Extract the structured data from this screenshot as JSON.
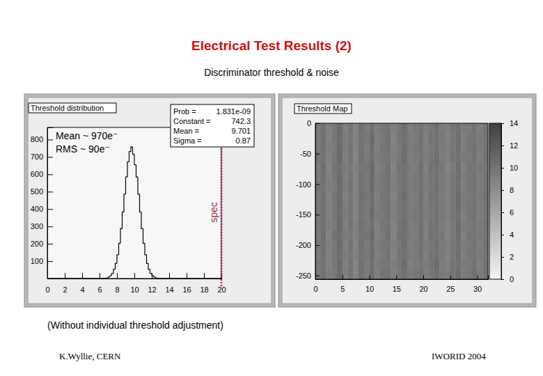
{
  "slide": {
    "title": "Electrical Test Results (2)",
    "subtitle": "Discriminator threshold & noise",
    "note": "(Without individual threshold adjustment)",
    "footer_left": "K.Wyllie, CERN",
    "footer_right": "IWORID 2004"
  },
  "chart_data": [
    {
      "type": "histogram",
      "title": "Threshold distribution",
      "annotations": [
        "Mean ~ 970e⁻",
        "RMS ~ 90e⁻"
      ],
      "stats": [
        {
          "label": "Prob =",
          "value": "1.831e-09"
        },
        {
          "label": "Constant =",
          "value": "742.3"
        },
        {
          "label": "Mean =",
          "value": "9.701"
        },
        {
          "label": "Sigma =",
          "value": "0.87"
        }
      ],
      "spec": {
        "label": "spec",
        "value": 20
      },
      "color": "#000000",
      "bins": [
        0,
        0.2,
        0.4,
        0.6,
        0.8,
        1,
        1.2,
        1.4,
        1.6,
        1.8,
        2,
        2.2,
        2.4,
        2.6,
        2.8,
        3,
        3.2,
        3.4,
        3.6,
        3.8,
        4,
        4.2,
        4.4,
        4.6,
        4.8,
        5,
        5.2,
        5.4,
        5.6,
        5.8,
        6,
        6.2,
        6.4,
        6.6,
        6.8,
        7,
        7.2,
        7.4,
        7.6,
        7.8,
        8,
        8.2,
        8.4,
        8.6,
        8.8,
        9,
        9.2,
        9.4,
        9.6,
        9.8,
        10,
        10.2,
        10.4,
        10.6,
        10.8,
        11,
        11.2,
        11.4,
        11.6,
        11.8,
        12,
        12.2,
        12.4,
        12.6,
        12.8,
        13,
        13.2,
        13.4,
        13.6,
        13.8,
        14,
        14.2,
        14.4,
        14.6,
        14.8,
        15,
        15.2,
        15.4,
        15.6,
        15.8,
        16,
        16.2,
        16.4,
        16.6,
        16.8,
        17,
        17.2,
        17.4,
        17.6,
        17.8,
        18,
        18.2,
        18.4,
        18.6,
        18.8,
        19,
        19.2,
        19.4,
        19.6,
        19.8,
        20
      ],
      "values": [
        0,
        0,
        0,
        0,
        0,
        0,
        0,
        0,
        0,
        0,
        0,
        0,
        0,
        0,
        0,
        0,
        0,
        0,
        0,
        0,
        0,
        0,
        0,
        0,
        0,
        0,
        0,
        0,
        0,
        0,
        0,
        0,
        1,
        2,
        4,
        9,
        17,
        30,
        53,
        87,
        137,
        203,
        287,
        383,
        486,
        585,
        672,
        731,
        758,
        716,
        655,
        585,
        486,
        383,
        287,
        203,
        137,
        87,
        53,
        30,
        17,
        9,
        4,
        2,
        1,
        0,
        0,
        0,
        0,
        0,
        0,
        0,
        0,
        0,
        0,
        0,
        0,
        0,
        0,
        0,
        0,
        0,
        0,
        0,
        0,
        0,
        0,
        0,
        0,
        0,
        0,
        0,
        0,
        0,
        0,
        0,
        0,
        0,
        0,
        0
      ],
      "xlim": [
        0,
        20
      ],
      "xticks": [
        0,
        2,
        4,
        6,
        8,
        10,
        12,
        14,
        16,
        18,
        20
      ],
      "ylim": [
        0,
        870
      ],
      "yticks": [
        100,
        200,
        300,
        400,
        500,
        600,
        700,
        800
      ]
    },
    {
      "type": "heatmap",
      "title": "Threshold Map",
      "x_bins": [
        0,
        1,
        2,
        3,
        4,
        5,
        6,
        7,
        8,
        9,
        10,
        11,
        12,
        13,
        14,
        15,
        16,
        17,
        18,
        19,
        20,
        21,
        22,
        23,
        24,
        25,
        26,
        27,
        28,
        29,
        30,
        31,
        32
      ],
      "y_bins": [
        0,
        -16,
        -32,
        -48,
        -64,
        -80,
        -96,
        -112,
        -128,
        -144,
        -160,
        -176,
        -192,
        -208,
        -224,
        -240,
        -256
      ],
      "cells": [
        [
          9.6,
          10.1,
          9.2,
          9.7,
          10.6,
          9.2,
          10.0,
          8.8,
          10.2,
          9.5,
          10.3,
          9.3,
          9.8,
          9.9,
          9.1,
          9.7,
          10.4,
          9.3,
          9.7,
          10.0,
          9.3,
          9.8,
          10.3,
          9.4,
          9.1,
          9.9,
          10.3,
          9.4,
          9.6,
          10.1,
          9.3,
          10.0
        ],
        [
          9.4,
          10.3,
          9.0,
          9.9,
          10.4,
          9.4,
          9.8,
          9.0,
          10.0,
          9.7,
          10.5,
          9.1,
          9.6,
          10.1,
          8.9,
          9.9,
          10.2,
          9.5,
          9.5,
          10.2,
          9.1,
          10.0,
          10.1,
          9.6,
          8.9,
          9.7,
          10.5,
          9.2,
          9.8,
          9.9,
          9.5,
          9.8
        ],
        [
          9.5,
          10.2,
          9.3,
          9.6,
          10.5,
          9.3,
          10.1,
          8.9,
          10.1,
          9.4,
          10.4,
          9.2,
          9.9,
          10.0,
          9.0,
          9.6,
          10.3,
          9.4,
          9.8,
          10.1,
          9.2,
          9.7,
          10.2,
          9.5,
          9.2,
          9.8,
          10.4,
          9.3,
          9.7,
          10.2,
          9.4,
          9.9
        ],
        [
          9.7,
          10.0,
          9.1,
          9.8,
          10.7,
          9.1,
          9.9,
          8.7,
          10.3,
          9.6,
          10.2,
          9.4,
          9.7,
          9.8,
          9.2,
          9.8,
          10.5,
          9.2,
          9.6,
          9.9,
          9.4,
          9.9,
          10.4,
          9.3,
          9.0,
          10.0,
          10.2,
          9.5,
          9.5,
          10.0,
          9.2,
          10.1
        ],
        [
          9.3,
          10.4,
          8.9,
          10.0,
          10.3,
          9.5,
          9.7,
          9.1,
          9.9,
          9.8,
          10.6,
          9.0,
          9.5,
          10.2,
          8.8,
          10.0,
          10.1,
          9.6,
          9.4,
          10.3,
          9.0,
          10.1,
          10.0,
          9.7,
          8.8,
          9.6,
          10.6,
          9.1,
          9.9,
          9.8,
          9.6,
          9.7
        ],
        [
          9.5,
          10.2,
          9.1,
          9.8,
          10.5,
          9.3,
          9.9,
          8.9,
          10.1,
          9.6,
          10.4,
          9.2,
          9.7,
          10.0,
          9.0,
          9.8,
          10.3,
          9.4,
          9.6,
          10.1,
          9.2,
          9.9,
          10.2,
          9.5,
          9.0,
          9.8,
          10.4,
          9.3,
          9.7,
          10.0,
          9.4,
          9.9
        ],
        [
          9.8,
          10.0,
          9.3,
          9.6,
          10.4,
          9.4,
          10.1,
          8.8,
          10.0,
          9.5,
          10.5,
          9.3,
          9.6,
          10.1,
          9.1,
          9.7,
          10.2,
          9.5,
          9.7,
          10.0,
          9.3,
          9.8,
          10.3,
          9.6,
          9.1,
          9.9,
          10.3,
          9.2,
          9.8,
          10.1,
          9.3,
          9.8
        ],
        [
          9.4,
          10.3,
          9.0,
          9.9,
          10.6,
          9.2,
          9.8,
          9.0,
          10.2,
          9.7,
          10.3,
          9.1,
          9.8,
          9.9,
          8.9,
          9.9,
          10.4,
          9.3,
          9.5,
          10.2,
          9.1,
          10.0,
          10.1,
          9.4,
          8.9,
          9.7,
          10.5,
          9.4,
          9.6,
          9.9,
          9.5,
          10.0
        ],
        [
          9.6,
          10.1,
          9.2,
          9.7,
          10.5,
          9.3,
          10.0,
          8.9,
          10.1,
          9.6,
          10.4,
          9.2,
          9.7,
          10.0,
          9.0,
          9.8,
          10.3,
          9.4,
          9.6,
          10.1,
          9.2,
          9.9,
          10.2,
          9.5,
          9.0,
          9.8,
          10.4,
          9.3,
          9.7,
          10.0,
          9.4,
          9.9
        ],
        [
          9.5,
          10.2,
          9.1,
          9.8,
          10.4,
          9.4,
          9.9,
          8.8,
          10.0,
          9.5,
          10.5,
          9.3,
          9.6,
          10.1,
          9.1,
          9.7,
          10.2,
          9.5,
          9.7,
          10.0,
          9.3,
          9.8,
          10.3,
          9.6,
          9.1,
          9.9,
          10.3,
          9.2,
          9.8,
          10.1,
          9.3,
          9.8
        ],
        [
          9.7,
          10.0,
          9.3,
          9.6,
          10.6,
          9.2,
          10.1,
          9.0,
          10.2,
          9.7,
          10.3,
          9.1,
          9.8,
          9.9,
          8.9,
          9.9,
          10.4,
          9.3,
          9.5,
          10.2,
          9.1,
          10.0,
          10.1,
          9.4,
          8.9,
          9.7,
          10.5,
          9.4,
          9.6,
          9.9,
          9.5,
          10.0
        ],
        [
          9.3,
          10.4,
          8.9,
          10.0,
          10.3,
          9.5,
          9.7,
          9.1,
          9.9,
          9.8,
          10.6,
          9.0,
          9.5,
          10.2,
          8.8,
          10.0,
          10.1,
          9.6,
          9.4,
          10.3,
          9.0,
          10.1,
          10.0,
          9.7,
          8.8,
          9.6,
          10.6,
          9.1,
          9.9,
          9.8,
          9.6,
          9.7
        ],
        [
          9.6,
          10.1,
          9.2,
          9.7,
          10.6,
          9.2,
          10.0,
          8.8,
          10.2,
          9.5,
          10.3,
          9.3,
          9.8,
          9.9,
          9.1,
          9.7,
          10.4,
          9.3,
          9.7,
          10.0,
          9.3,
          9.8,
          10.3,
          9.4,
          9.1,
          9.9,
          10.3,
          9.4,
          9.6,
          10.1,
          9.3,
          10.0
        ],
        [
          9.4,
          10.3,
          9.0,
          9.9,
          10.4,
          9.4,
          9.8,
          9.0,
          10.0,
          9.7,
          10.5,
          9.1,
          9.6,
          10.1,
          8.9,
          9.9,
          10.2,
          9.5,
          9.5,
          10.2,
          9.1,
          10.0,
          10.1,
          9.6,
          8.9,
          9.7,
          10.5,
          9.2,
          9.8,
          9.9,
          9.5,
          9.8
        ],
        [
          9.7,
          10.0,
          9.1,
          9.8,
          10.7,
          9.1,
          9.9,
          8.7,
          10.3,
          9.6,
          10.2,
          9.4,
          9.7,
          9.8,
          9.2,
          9.8,
          10.5,
          9.2,
          9.6,
          9.9,
          9.4,
          9.9,
          10.4,
          9.3,
          9.0,
          10.0,
          10.2,
          9.5,
          9.5,
          10.0,
          9.2,
          10.1
        ],
        [
          9.5,
          10.2,
          9.3,
          9.6,
          10.5,
          9.3,
          10.1,
          8.9,
          10.1,
          9.4,
          10.4,
          9.2,
          9.9,
          10.0,
          9.0,
          9.6,
          10.3,
          9.4,
          9.8,
          10.1,
          9.2,
          9.7,
          10.2,
          9.5,
          9.2,
          9.8,
          10.4,
          9.3,
          9.7,
          10.2,
          9.4,
          9.9
        ]
      ],
      "xlim": [
        0,
        32
      ],
      "xticks": [
        0,
        5,
        10,
        15,
        20,
        25,
        30
      ],
      "ylim": [
        -256,
        0
      ],
      "yticks": [
        0,
        -50,
        -100,
        -150,
        -200,
        -250
      ],
      "colorbar": {
        "range": [
          0,
          14
        ],
        "ticks": [
          0,
          2,
          4,
          6,
          8,
          10,
          12,
          14
        ]
      }
    }
  ]
}
